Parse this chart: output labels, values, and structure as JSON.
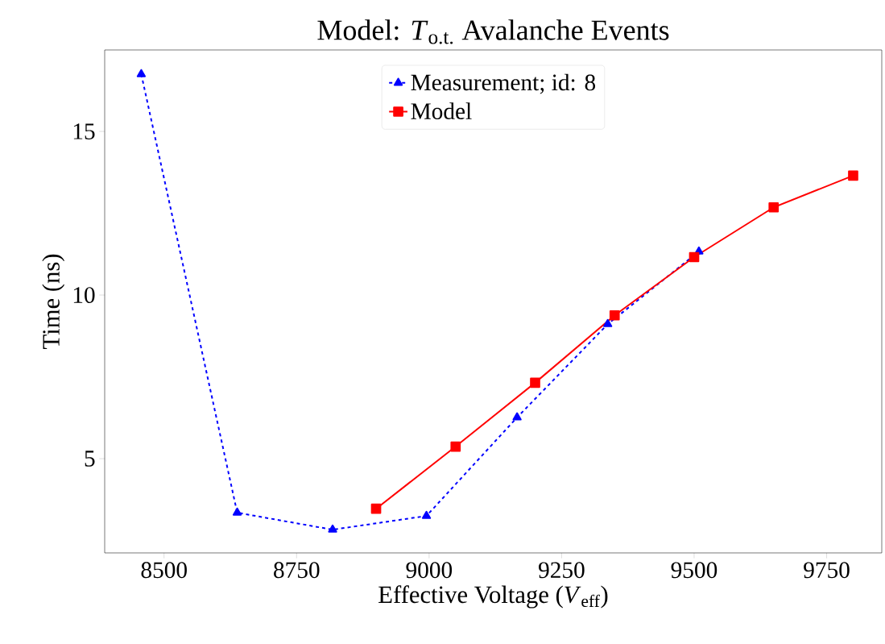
{
  "chart_data": {
    "type": "line",
    "title": "Model: *T*$_{o.t.}$ Avalanche Events",
    "xlabel": "Effective Voltage (*V*$_{eff}$)",
    "ylabel": "Time (ns)",
    "series": [
      {
        "name": "Measurement; id: 8",
        "color": "#0000ff",
        "marker": "triangle",
        "line_style": "dashed",
        "x": [
          8457,
          8638,
          8818,
          8995,
          9166,
          9337,
          9509
        ],
        "values": [
          16.75,
          3.35,
          2.83,
          3.25,
          6.26,
          9.11,
          11.33
        ]
      },
      {
        "name": "Model",
        "color": "#ff0000",
        "marker": "square",
        "line_style": "solid",
        "x": [
          8900,
          9050,
          9200,
          9350,
          9500,
          9650,
          9800
        ],
        "values": [
          3.47,
          5.37,
          7.32,
          9.38,
          11.16,
          12.68,
          13.65
        ]
      }
    ],
    "xlim": [
      8388,
      9854
    ],
    "ylim": [
      2.12,
      17.49
    ],
    "xticks": [
      8500,
      8750,
      9000,
      9250,
      9500,
      9750
    ],
    "yticks": [
      5,
      10,
      15
    ],
    "grid": false,
    "legend": "top"
  }
}
